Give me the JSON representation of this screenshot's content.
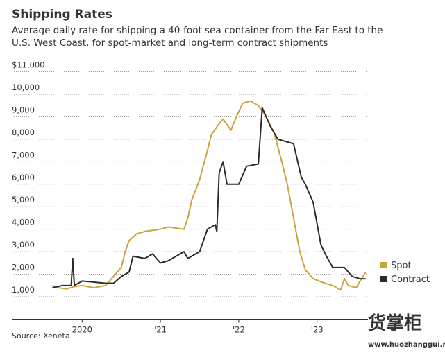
{
  "chart_data": {
    "type": "line",
    "title": "Shipping Rates",
    "subtitle": "Average daily rate for shipping a 40-foot sea container from the Far East to the U.S. West Coast, for spot-market and long-term contract shipments",
    "source": "Source: Xeneta",
    "xlim": [
      2019.35,
      2023.65
    ],
    "xticks": [
      {
        "value": 2020,
        "label": "2020"
      },
      {
        "value": 2021,
        "label": "'21"
      },
      {
        "value": 2022,
        "label": "'22"
      },
      {
        "value": 2023,
        "label": "'23"
      }
    ],
    "ylim": [
      0,
      11000
    ],
    "yticks": [
      {
        "value": 1000,
        "label": "1,000"
      },
      {
        "value": 2000,
        "label": "2,000"
      },
      {
        "value": 3000,
        "label": "3,000"
      },
      {
        "value": 4000,
        "label": "4,000"
      },
      {
        "value": 5000,
        "label": "5,000"
      },
      {
        "value": 6000,
        "label": "6,000"
      },
      {
        "value": 7000,
        "label": "7,000"
      },
      {
        "value": 8000,
        "label": "8,000"
      },
      {
        "value": 9000,
        "label": "9,000"
      },
      {
        "value": 10000,
        "label": "10,000"
      },
      {
        "value": 11000,
        "label": "$11,000"
      }
    ],
    "grid": true,
    "legend": "right",
    "series": [
      {
        "name": "Spot",
        "color": "#c9a43a",
        "x": [
          2019.62,
          2019.7,
          2019.8,
          2019.9,
          2020.0,
          2020.15,
          2020.3,
          2020.4,
          2020.5,
          2020.55,
          2020.6,
          2020.7,
          2020.8,
          2021.0,
          2021.1,
          2021.3,
          2021.35,
          2021.4,
          2021.5,
          2021.6,
          2021.65,
          2021.75,
          2021.8,
          2021.9,
          2021.97,
          2022.05,
          2022.15,
          2022.25,
          2022.35,
          2022.45,
          2022.55,
          2022.62,
          2022.7,
          2022.78,
          2022.85,
          2022.95,
          2023.1,
          2023.2,
          2023.3,
          2023.35,
          2023.4,
          2023.5,
          2023.55,
          2023.62
        ],
        "values": [
          1500,
          1400,
          1350,
          1450,
          1500,
          1400,
          1500,
          1900,
          2300,
          3000,
          3500,
          3800,
          3900,
          4000,
          4100,
          4000,
          4500,
          5300,
          6200,
          7500,
          8200,
          8700,
          8900,
          8400,
          9000,
          9600,
          9700,
          9500,
          9000,
          8300,
          7000,
          6000,
          4500,
          3000,
          2200,
          1800,
          1600,
          1500,
          1300,
          1800,
          1500,
          1400,
          1700,
          2100
        ]
      },
      {
        "name": "Contract",
        "color": "#2b2b2b",
        "x": [
          2019.62,
          2019.75,
          2019.86,
          2019.88,
          2019.9,
          2020.0,
          2020.3,
          2020.4,
          2020.5,
          2020.6,
          2020.65,
          2020.8,
          2020.9,
          2021.0,
          2021.1,
          2021.2,
          2021.3,
          2021.35,
          2021.5,
          2021.6,
          2021.7,
          2021.72,
          2021.75,
          2021.8,
          2021.85,
          2022.0,
          2022.1,
          2022.25,
          2022.3,
          2022.4,
          2022.5,
          2022.6,
          2022.7,
          2022.72,
          2022.8,
          2022.85,
          2022.95,
          2023.05,
          2023.12,
          2023.2,
          2023.35,
          2023.45,
          2023.55,
          2023.62
        ],
        "values": [
          1400,
          1500,
          1500,
          2700,
          1500,
          1700,
          1600,
          1600,
          1900,
          2100,
          2800,
          2700,
          2900,
          2500,
          2600,
          2800,
          3000,
          2700,
          3000,
          4000,
          4200,
          3900,
          6500,
          7000,
          6000,
          6000,
          6800,
          6900,
          9400,
          8600,
          8000,
          7900,
          7800,
          7500,
          6300,
          6000,
          5200,
          3300,
          2800,
          2300,
          2300,
          1900,
          1800,
          1800
        ]
      }
    ]
  },
  "watermark": {
    "text": "货掌柜",
    "url": "www.huozhanggui.net"
  }
}
